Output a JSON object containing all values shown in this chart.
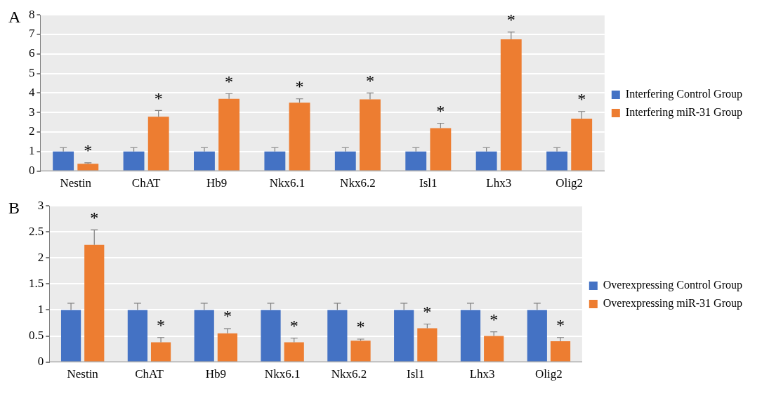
{
  "chart_data": [
    {
      "type": "bar",
      "title": "A",
      "categories": [
        "Nestin",
        "ChAT",
        "Hb9",
        "Nkx6.1",
        "Nkx6.2",
        "Isl1",
        "Lhx3",
        "Olig2"
      ],
      "series": [
        {
          "name": "Interfering Control Group",
          "color": "#4472c4",
          "values": [
            1,
            1,
            1,
            1,
            1,
            1,
            1,
            1
          ],
          "errors": [
            [
              1,
              1.2
            ],
            [
              1,
              1.2
            ],
            [
              1,
              1.2
            ],
            [
              1,
              1.2
            ],
            [
              1,
              1.2
            ],
            [
              1,
              1.2
            ],
            [
              1,
              1.2
            ],
            [
              1,
              1.2
            ]
          ]
        },
        {
          "name": "Interfering miR-31 Group",
          "color": "#ed7d31",
          "values": [
            0.37,
            2.78,
            3.7,
            3.5,
            3.67,
            2.2,
            6.75,
            2.68
          ],
          "errors": [
            [
              0.37,
              0.42
            ],
            [
              2.78,
              3.1
            ],
            [
              3.7,
              3.97
            ],
            [
              3.5,
              3.7
            ],
            [
              3.67,
              4.0
            ],
            [
              2.2,
              2.45
            ],
            [
              6.75,
              7.12
            ],
            [
              2.68,
              3.05
            ]
          ]
        }
      ],
      "ylim": [
        0,
        8
      ],
      "yticks": [
        0,
        1,
        2,
        3,
        4,
        5,
        6,
        7,
        8
      ],
      "grid": "y",
      "legend": "right",
      "annotations": [
        {
          "text": "*",
          "x": "Nestin",
          "y": 0.37
        },
        {
          "text": "*",
          "x": "ChAT",
          "y": 2.78
        },
        {
          "text": "*",
          "x": "Hb9",
          "y": 3.7
        },
        {
          "text": "*",
          "x": "Nkx6.1",
          "y": 3.5
        },
        {
          "text": "*",
          "x": "Nkx6.2",
          "y": 3.67
        },
        {
          "text": "*",
          "x": "Isl1",
          "y": 2.2
        },
        {
          "text": "*",
          "x": "Lhx3",
          "y": 6.75
        },
        {
          "text": "*",
          "x": "Olig2",
          "y": 2.68
        }
      ]
    },
    {
      "type": "bar",
      "title": "B",
      "categories": [
        "Nestin",
        "ChAT",
        "Hb9",
        "Nkx6.1",
        "Nkx6.2",
        "Isl1",
        "Lhx3",
        "Olig2"
      ],
      "series": [
        {
          "name": "Overexpressing Control Group",
          "color": "#4472c4",
          "values": [
            1,
            1,
            1,
            1,
            1,
            1,
            1,
            1
          ],
          "errors": [
            [
              1,
              1.13
            ],
            [
              1,
              1.13
            ],
            [
              1,
              1.13
            ],
            [
              1,
              1.13
            ],
            [
              1,
              1.13
            ],
            [
              1,
              1.13
            ],
            [
              1,
              1.13
            ],
            [
              1,
              1.13
            ]
          ]
        },
        {
          "name": "Overexpressing miR-31 Group",
          "color": "#ed7d31",
          "values": [
            2.25,
            0.38,
            0.55,
            0.38,
            0.41,
            0.65,
            0.5,
            0.4
          ],
          "errors": [
            [
              2.25,
              2.54
            ],
            [
              0.38,
              0.47
            ],
            [
              0.55,
              0.64
            ],
            [
              0.38,
              0.46
            ],
            [
              0.41,
              0.44
            ],
            [
              0.65,
              0.73
            ],
            [
              0.5,
              0.58
            ],
            [
              0.4,
              0.47
            ]
          ]
        }
      ],
      "ylim": [
        0,
        3
      ],
      "yticks": [
        0,
        0.5,
        1,
        1.5,
        2,
        2.5,
        3
      ],
      "grid": "y",
      "legend": "right",
      "annotations": [
        {
          "text": "*",
          "x": "Nestin",
          "y": 2.25
        },
        {
          "text": "*",
          "x": "ChAT",
          "y": 0.38
        },
        {
          "text": "*",
          "x": "Hb9",
          "y": 0.55
        },
        {
          "text": "*",
          "x": "Nkx6.1",
          "y": 0.38
        },
        {
          "text": "*",
          "x": "Nkx6.2",
          "y": 0.41
        },
        {
          "text": "*",
          "x": "Isl1",
          "y": 0.65
        },
        {
          "text": "*",
          "x": "Lhx3",
          "y": 0.5
        },
        {
          "text": "*",
          "x": "Olig2",
          "y": 0.4
        }
      ]
    }
  ]
}
